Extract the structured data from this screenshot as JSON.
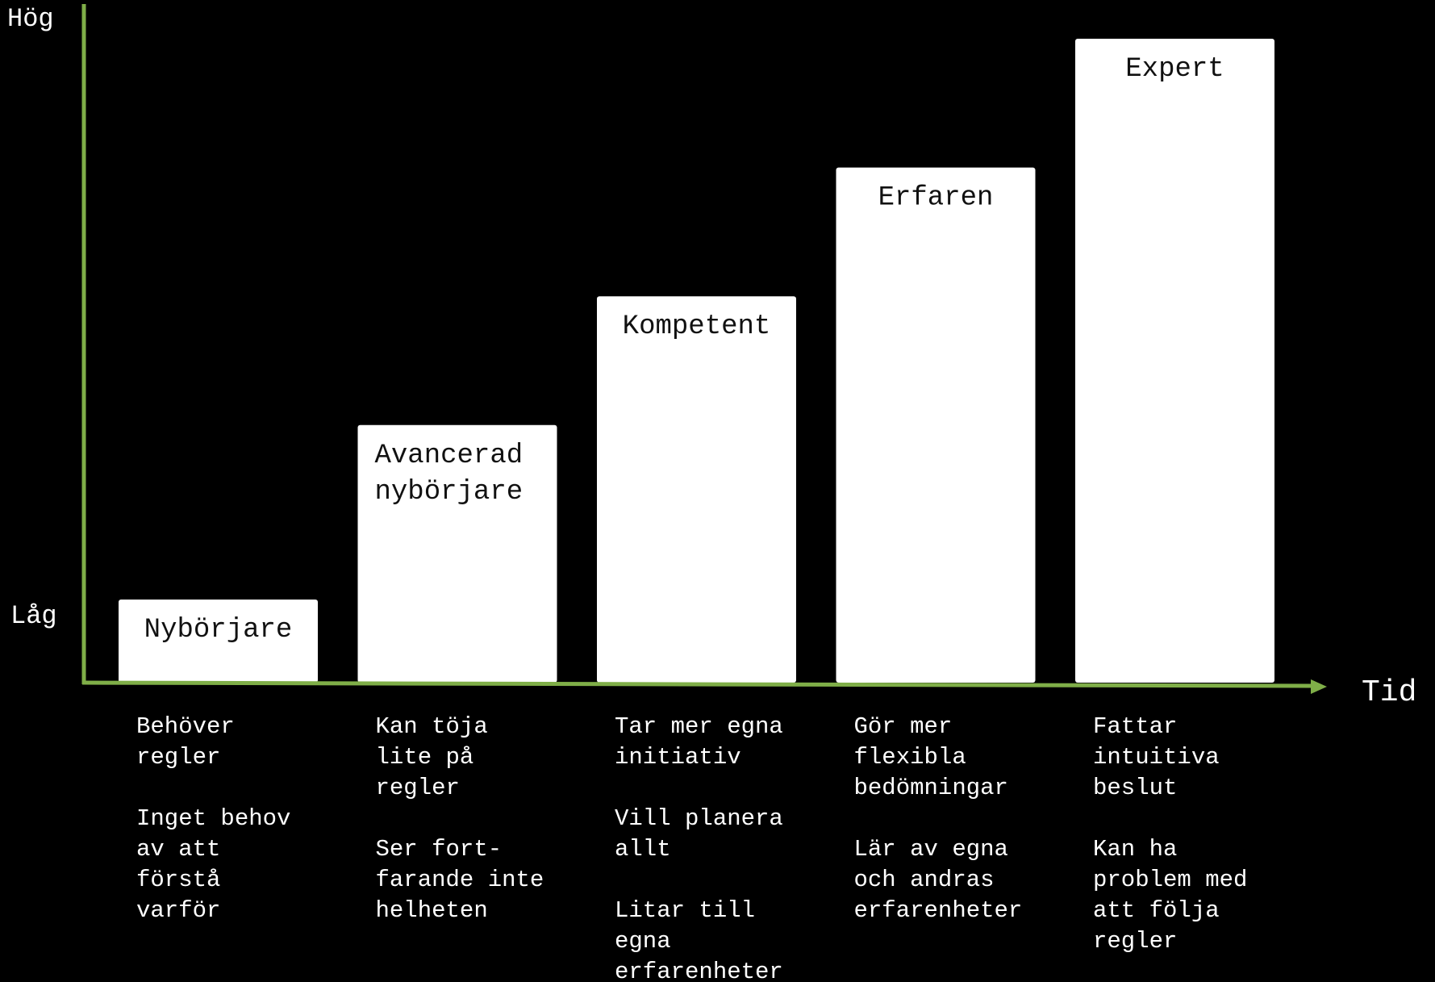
{
  "colors": {
    "background": "#000000",
    "axis": "#7FAE48",
    "bar": "#ffffff",
    "bar_text": "#111111",
    "text": "#ffffff"
  },
  "axes": {
    "y_high": "Hög",
    "y_low": "Låg",
    "x_label": "Tid"
  },
  "chart_data": {
    "type": "bar",
    "categories": [
      "Nybörjare",
      "Avancerad nybörjare",
      "Kompetent",
      "Erfaren",
      "Expert"
    ],
    "category_lines": [
      [
        "Nybörjare"
      ],
      [
        "Avancerad",
        "nybörjare"
      ],
      [
        "Kompetent"
      ],
      [
        "Erfaren"
      ],
      [
        "Expert"
      ]
    ],
    "values": [
      1,
      2,
      3,
      4,
      5
    ],
    "ylim": [
      0,
      5
    ],
    "ylabel_high": "Hög",
    "ylabel_low": "Låg",
    "xlabel": "Tid",
    "grid": false,
    "legend": "none"
  },
  "descriptions": [
    {
      "stage": "Nybörjare",
      "paragraphs": [
        [
          "Behöver",
          "regler"
        ],
        [
          "Inget behov",
          "av att",
          "förstå",
          "varför"
        ]
      ]
    },
    {
      "stage": "Avancerad nybörjare",
      "paragraphs": [
        [
          "Kan töja",
          "lite på",
          "regler"
        ],
        [
          "Ser fort-",
          "farande inte",
          "helheten"
        ]
      ]
    },
    {
      "stage": "Kompetent",
      "paragraphs": [
        [
          "Tar mer egna",
          "initiativ"
        ],
        [
          "Vill planera",
          "allt"
        ],
        [
          "Litar till",
          "egna",
          "erfarenheter"
        ]
      ]
    },
    {
      "stage": "Erfaren",
      "paragraphs": [
        [
          "Gör mer",
          "flexibla",
          "bedömningar"
        ],
        [
          "Lär av egna",
          "och andras",
          "erfarenheter"
        ]
      ]
    },
    {
      "stage": "Expert",
      "paragraphs": [
        [
          "Fattar",
          "intuitiva",
          "beslut"
        ],
        [
          "Kan ha",
          "problem med",
          "att följa",
          "regler"
        ]
      ]
    }
  ]
}
